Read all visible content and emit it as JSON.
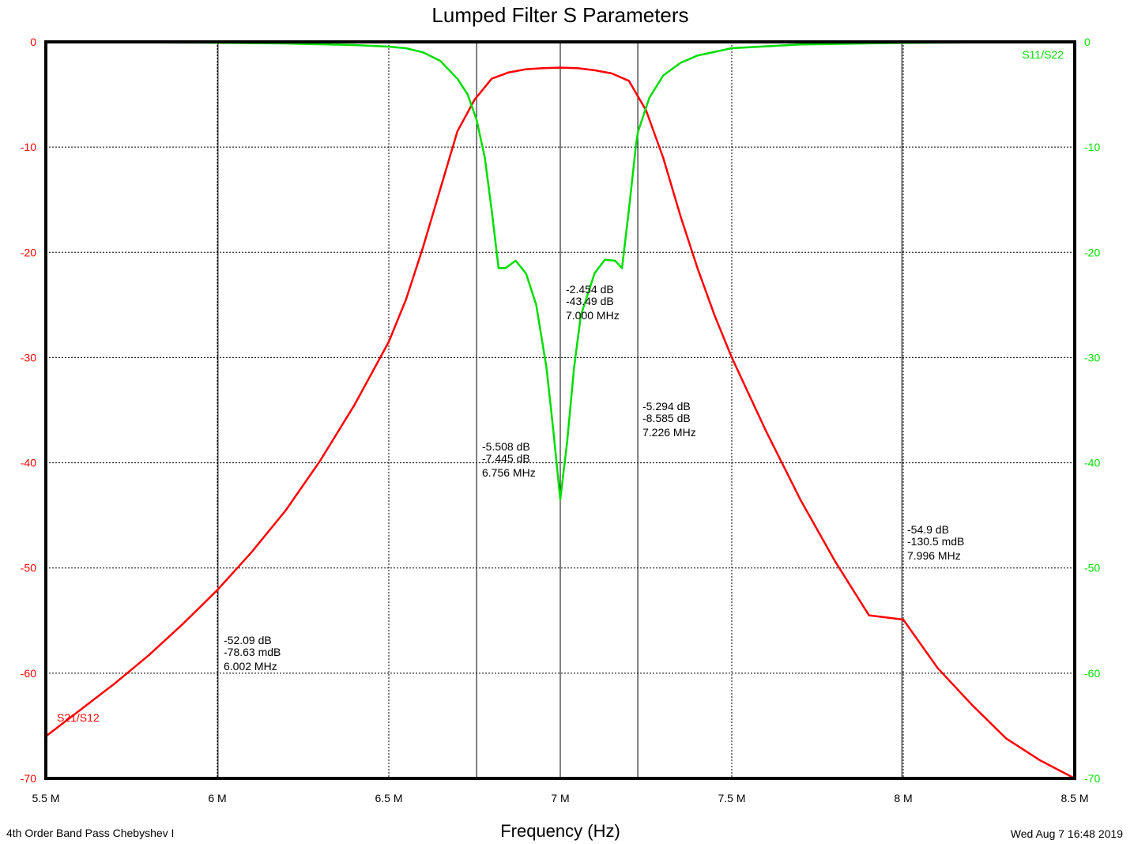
{
  "chart_data": {
    "type": "line",
    "title": "Lumped Filter S Parameters",
    "xlabel": "Frequency (Hz)",
    "ylabel": "",
    "xlim": [
      5.5,
      8.5
    ],
    "ylim": [
      -70,
      0
    ],
    "x_unit_scale": "MHz",
    "x_ticks": [
      {
        "value": 5.5,
        "label": "5.5 M"
      },
      {
        "value": 6.0,
        "label": "6 M"
      },
      {
        "value": 6.5,
        "label": "6.5 M"
      },
      {
        "value": 7.0,
        "label": "7 M"
      },
      {
        "value": 7.5,
        "label": "7.5 M"
      },
      {
        "value": 8.0,
        "label": "8 M"
      },
      {
        "value": 8.5,
        "label": "8.5 M"
      }
    ],
    "y_ticks": [
      0,
      -10,
      -20,
      -30,
      -40,
      -50,
      -60,
      -70
    ],
    "grid": true,
    "footer_left": "4th Order Band Pass Chebyshev I",
    "footer_right": "Wed Aug  7 16:48 2019",
    "series": [
      {
        "name": "S21/S12",
        "color": "#ff0000",
        "x": [
          5.5,
          5.6,
          5.7,
          5.8,
          5.9,
          6.0,
          6.1,
          6.2,
          6.3,
          6.4,
          6.5,
          6.55,
          6.6,
          6.65,
          6.7,
          6.75,
          6.8,
          6.85,
          6.9,
          6.95,
          7.0,
          7.05,
          7.1,
          7.15,
          7.2,
          7.25,
          7.3,
          7.35,
          7.4,
          7.45,
          7.5,
          7.6,
          7.7,
          7.8,
          7.9,
          8.0,
          8.1,
          8.2,
          8.3,
          8.4,
          8.5
        ],
        "values": [
          -66,
          -63.5,
          -61,
          -58.3,
          -55.3,
          -52.1,
          -48.5,
          -44.5,
          -39.8,
          -34.5,
          -28.5,
          -24.5,
          -19.5,
          -14,
          -8.5,
          -5.5,
          -3.5,
          -2.9,
          -2.6,
          -2.5,
          -2.45,
          -2.5,
          -2.7,
          -3.0,
          -3.7,
          -6.5,
          -11,
          -16.5,
          -21.5,
          -26,
          -30,
          -37,
          -43.5,
          -49.3,
          -54.5,
          -54.9,
          -59.5,
          -63,
          -66.2,
          -68.3,
          -70
        ]
      },
      {
        "name": "S11/S22",
        "color": "#00dd00",
        "x": [
          5.5,
          5.8,
          6.0,
          6.2,
          6.4,
          6.5,
          6.55,
          6.6,
          6.65,
          6.7,
          6.73,
          6.756,
          6.78,
          6.8,
          6.82,
          6.84,
          6.87,
          6.9,
          6.93,
          6.96,
          6.98,
          7.0,
          7.02,
          7.04,
          7.06,
          7.08,
          7.1,
          7.13,
          7.16,
          7.18,
          7.2,
          7.22,
          7.226,
          7.26,
          7.3,
          7.35,
          7.4,
          7.5,
          7.7,
          8.0,
          8.5
        ],
        "values": [
          0,
          -0.05,
          -0.08,
          -0.15,
          -0.3,
          -0.45,
          -0.6,
          -1.0,
          -1.8,
          -3.5,
          -5.0,
          -7.4,
          -11,
          -16,
          -21.5,
          -21.5,
          -20.8,
          -22,
          -25,
          -31,
          -37,
          -43.5,
          -38,
          -31,
          -26,
          -24,
          -22,
          -20.7,
          -20.8,
          -21.5,
          -16,
          -10,
          -8.6,
          -5.3,
          -3.2,
          -2.0,
          -1.3,
          -0.6,
          -0.25,
          -0.1,
          0
        ]
      }
    ],
    "marker_frequencies": [
      6.002,
      6.756,
      7.0,
      7.226,
      7.996
    ],
    "annotations": [
      {
        "x": 6.002,
        "lines": [
          "-52.09 dB",
          "-78.63 mdB",
          "6.002 MHz"
        ]
      },
      {
        "x": 6.756,
        "lines": [
          "-5.508 dB",
          "-7.445 dB",
          "6.756 MHz"
        ]
      },
      {
        "x": 7.0,
        "lines": [
          "-2.454 dB",
          "-43.49 dB",
          "7.000 MHz"
        ]
      },
      {
        "x": 7.226,
        "lines": [
          "-5.294 dB",
          "-8.585 dB",
          "7.226 MHz"
        ]
      },
      {
        "x": 7.996,
        "lines": [
          "-54.9 dB",
          "-130.5 mdB",
          "7.996 MHz"
        ]
      }
    ]
  }
}
